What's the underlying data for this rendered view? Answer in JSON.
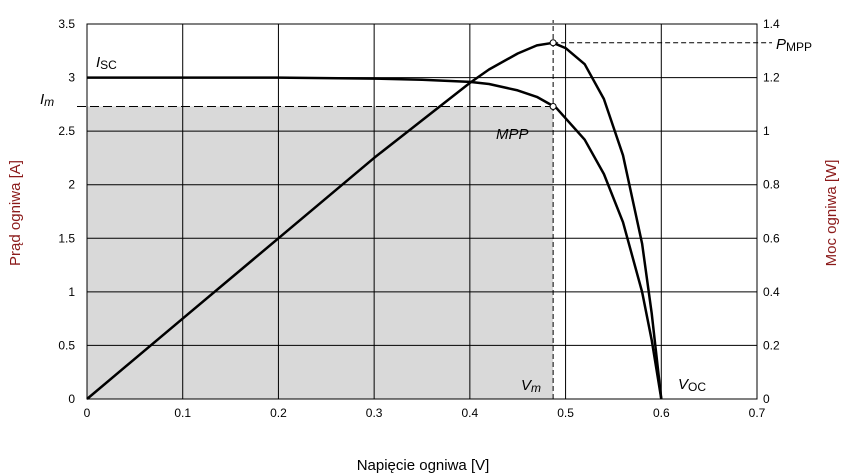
{
  "chart_data": {
    "type": "line",
    "xlabel": "Napięcie ogniwa [V]",
    "ylabel_left": "Prąd ogniwa [A]",
    "ylabel_right": "Moc ogniwa [W]",
    "xlim": [
      0,
      0.7
    ],
    "ylim_left": [
      0,
      3.5
    ],
    "ylim_right": [
      0,
      1.4
    ],
    "x_ticks": [
      "0",
      "0.1",
      "0.2",
      "0.3",
      "0.4",
      "0.5",
      "0.6",
      "0.7"
    ],
    "y_left_ticks": [
      "0",
      "0.5",
      "1",
      "1.5",
      "2",
      "2.5",
      "3",
      "3.5"
    ],
    "y_right_ticks": [
      "0",
      "0.2",
      "0.4",
      "0.6",
      "0.8",
      "1",
      "1.2",
      "1.4"
    ],
    "grid": true,
    "axis_label_color": "#8b1a1a",
    "series": [
      {
        "axis": "left",
        "x": [
          0,
          0.1,
          0.2,
          0.3,
          0.35,
          0.4,
          0.42,
          0.45,
          0.47,
          0.49,
          0.5,
          0.52,
          0.54,
          0.56,
          0.58,
          0.59,
          0.6
        ],
        "y": [
          3.0,
          3.0,
          3.0,
          2.99,
          2.98,
          2.96,
          2.94,
          2.88,
          2.82,
          2.72,
          2.62,
          2.42,
          2.1,
          1.65,
          1.0,
          0.55,
          0.0
        ]
      },
      {
        "axis": "right",
        "x": [
          0,
          0.1,
          0.2,
          0.3,
          0.35,
          0.4,
          0.42,
          0.45,
          0.47,
          0.487,
          0.5,
          0.52,
          0.54,
          0.56,
          0.58,
          0.59,
          0.6
        ],
        "y": [
          0,
          0.3,
          0.6,
          0.9,
          1.04,
          1.18,
          1.23,
          1.29,
          1.32,
          1.33,
          1.31,
          1.25,
          1.12,
          0.91,
          0.58,
          0.32,
          0.0
        ]
      }
    ],
    "mpp": {
      "v": 0.487,
      "i": 2.73,
      "p": 1.33
    },
    "annotations": {
      "isc_main": "I",
      "isc_sub": "SC",
      "im_main": "I",
      "im_sub": "m",
      "pmpp_main": "P",
      "pmpp_sub": "MPP",
      "mpp": "MPP",
      "vm_main": "V",
      "vm_sub": "m",
      "voc_main": "V",
      "voc_sub": "OC"
    },
    "shade_color": "#d9d9d9"
  }
}
